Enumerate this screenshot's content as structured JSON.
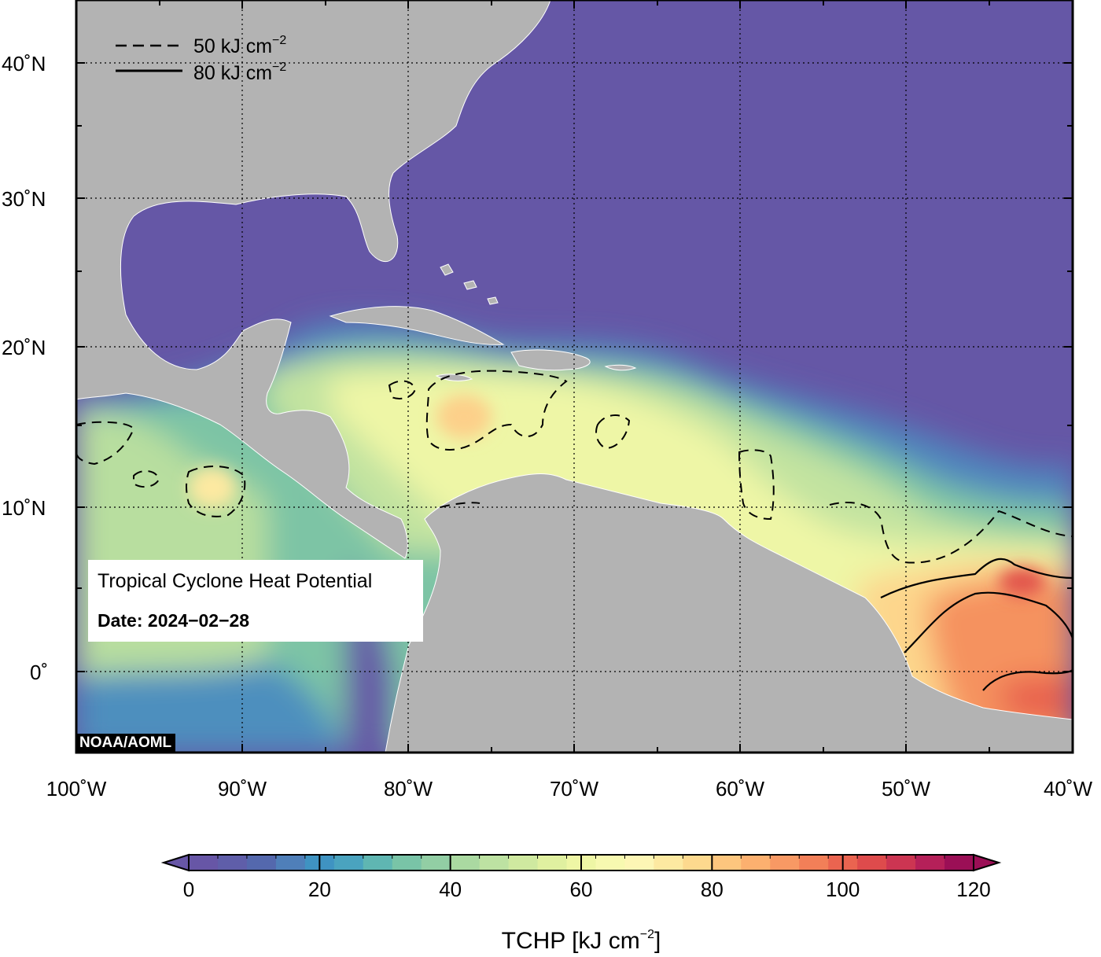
{
  "map": {
    "lon_range": [
      -100,
      -40
    ],
    "lat_range": [
      -5,
      44
    ],
    "lon_ticks": [
      "100˚W",
      "90˚W",
      "80˚W",
      "70˚W",
      "60˚W",
      "50˚W",
      "40˚W"
    ],
    "lat_ticks": [
      "40˚N",
      "30˚N",
      "20˚N",
      "10˚N",
      "0˚"
    ],
    "grid": "dotted",
    "ocean_color_base": "#6557a6",
    "land_color": "#b3b3b3"
  },
  "legend": {
    "items": [
      {
        "label": "50 kJ cm",
        "sup": "−2",
        "style": "dashed"
      },
      {
        "label": "80 kJ cm",
        "sup": "−2",
        "style": "solid"
      }
    ]
  },
  "info": {
    "title": "Tropical Cyclone Heat Potential",
    "date": "Date: 2024−02−28"
  },
  "credit": "NOAA/AOML",
  "colorbar": {
    "ticks": [
      "0",
      "20",
      "40",
      "60",
      "80",
      "100",
      "120"
    ],
    "range": [
      0,
      120
    ],
    "title_main": "TCHP [kJ cm",
    "title_sup": "−2",
    "title_end": "]",
    "colors": [
      "#6756a6",
      "#5f5ea9",
      "#5468ad",
      "#4f7fb9",
      "#3f93c2",
      "#4aa3bf",
      "#5fb6b2",
      "#79c4a7",
      "#92ceA4",
      "#aad9a1",
      "#bde2a2",
      "#cfe9a0",
      "#e0f0a0",
      "#eef6a5",
      "#f7f9b0",
      "#fdf6b5",
      "#fde9a1",
      "#fdd98e",
      "#fdc67e",
      "#fcb06f",
      "#f89964",
      "#f27f58",
      "#ea6450",
      "#de4b4c",
      "#cc3552",
      "#b52059",
      "#9b0f56"
    ]
  },
  "chart_data": {
    "type": "heatmap",
    "variable": "TCHP",
    "units": "kJ cm−2",
    "contours": [
      50,
      80
    ],
    "x": {
      "range": [
        -100,
        -40
      ]
    },
    "y": {
      "range": [
        -5,
        44
      ]
    }
  }
}
